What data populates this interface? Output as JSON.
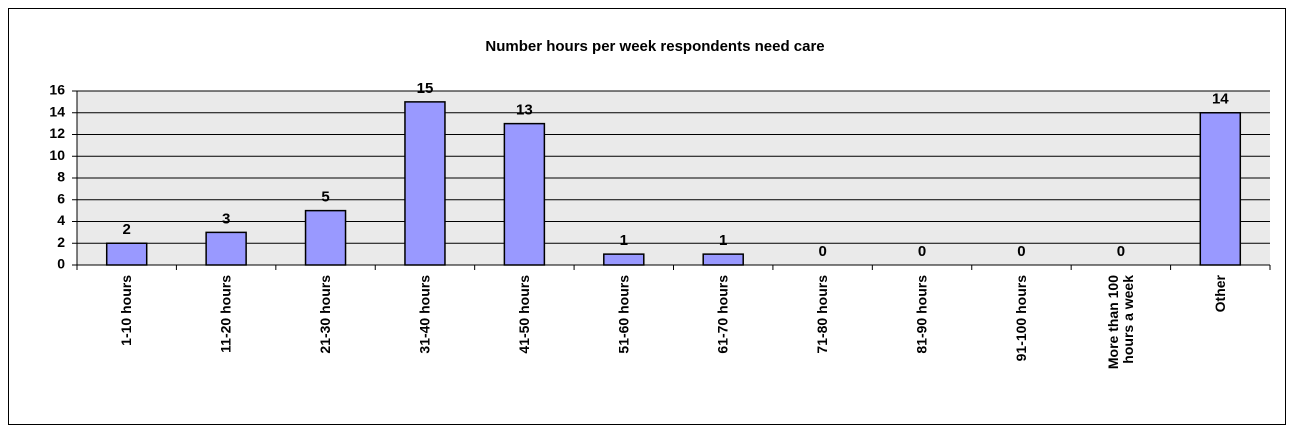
{
  "chart_data": {
    "type": "bar",
    "title": "Number hours per week respondents need care",
    "categories": [
      "1-10 hours",
      "11-20 hours",
      "21-30 hours",
      "31-40 hours",
      "41-50 hours",
      "51-60 hours",
      "61-70 hours",
      "71-80 hours",
      "81-90 hours",
      "91-100 hours",
      "More than 100 hours a week",
      "Other"
    ],
    "values": [
      2,
      3,
      5,
      15,
      13,
      1,
      1,
      0,
      0,
      0,
      0,
      14
    ],
    "color": "#9999ff",
    "ylim": [
      0,
      16
    ],
    "yticks": [
      0,
      2,
      4,
      6,
      8,
      10,
      12,
      14,
      16
    ],
    "grid": true
  }
}
